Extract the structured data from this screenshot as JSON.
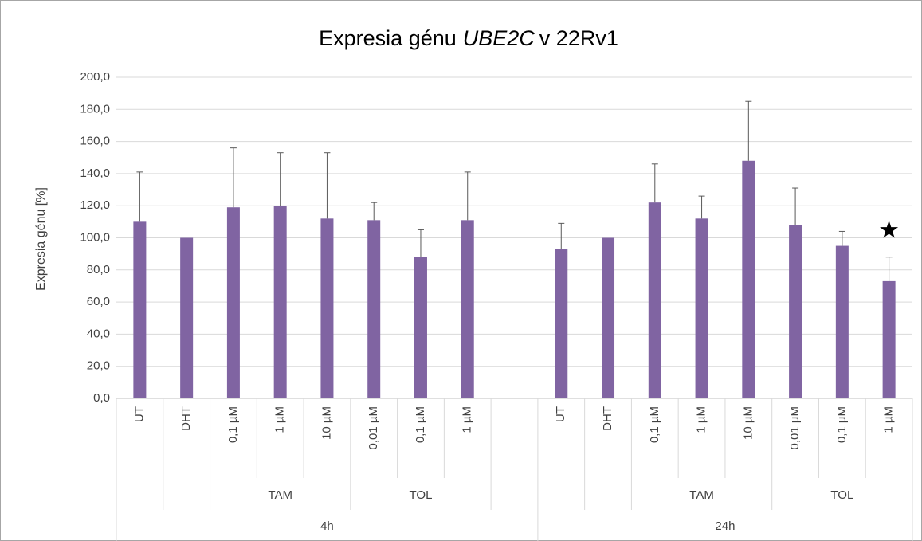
{
  "chart_data": {
    "type": "bar",
    "title_parts": [
      "Expresia génu",
      "UBE2C",
      "v 22Rv1"
    ],
    "y_label": "Expresia génu [%]",
    "categories": [
      "UT",
      "DHT",
      "0,1 µM",
      "1 µM",
      "10 µM",
      "0,01 µM",
      "0,1 µM",
      "1 µM",
      null,
      "UT",
      "DHT",
      "0,1 µM",
      "1 µM",
      "10 µM",
      "0,01 µM",
      "0,1 µM",
      "1 µM"
    ],
    "values": [
      110,
      100,
      119,
      120,
      112,
      111,
      88,
      111,
      null,
      93,
      100,
      122,
      112,
      148,
      108,
      95,
      73
    ],
    "errors": [
      31,
      0,
      37,
      33,
      41,
      11,
      17,
      30,
      null,
      16,
      0,
      24,
      14,
      37,
      23,
      9,
      15
    ],
    "color": "#8064a2",
    "groups": [
      {
        "label": "TAM",
        "start": 2,
        "end": 4
      },
      {
        "label": "TOL",
        "start": 5,
        "end": 7
      },
      {
        "label": "TAM",
        "start": 11,
        "end": 13
      },
      {
        "label": "TOL",
        "start": 14,
        "end": 16
      }
    ],
    "supergroups": [
      {
        "label": "4h",
        "start": 0,
        "end": 8
      },
      {
        "label": "24h",
        "start": 9,
        "end": 16
      }
    ],
    "annotations": [
      {
        "text": "★",
        "index": 16
      }
    ],
    "ylim": [
      0,
      200
    ],
    "yticks": [
      {
        "value": 0,
        "label": "0,0"
      },
      {
        "value": 20,
        "label": "20,0"
      },
      {
        "value": 40,
        "label": "40,0"
      },
      {
        "value": 60,
        "label": "60,0"
      },
      {
        "value": 80,
        "label": "80,0"
      },
      {
        "value": 100,
        "label": "100,0"
      },
      {
        "value": 120,
        "label": "120,0"
      },
      {
        "value": 140,
        "label": "140,0"
      },
      {
        "value": 160,
        "label": "160,0"
      },
      {
        "value": 180,
        "label": "180,0"
      },
      {
        "value": 200,
        "label": "200,0"
      }
    ],
    "grid": true
  }
}
